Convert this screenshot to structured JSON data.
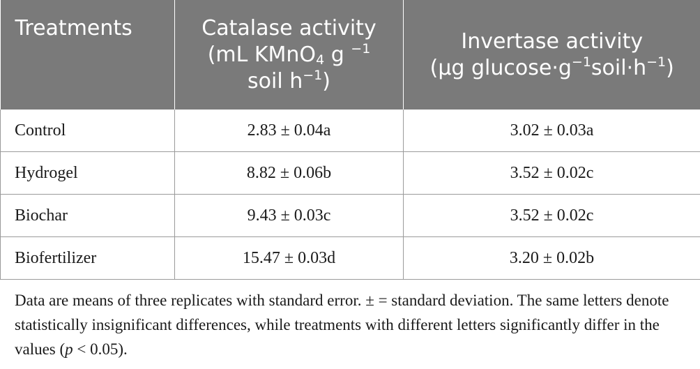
{
  "table": {
    "headers": {
      "treatments": "Treatments",
      "catalase": {
        "line1": "Catalase activity",
        "line2_pre": "(mL KMnO",
        "line2_sub": "4",
        "line2_post": " g ",
        "line2_sup": "−1",
        "line3_pre": "soil h",
        "line3_sup": "−1",
        "line3_post": ")"
      },
      "invertase": {
        "line1": "Invertase activity",
        "line2_pre": "(μg glucose·g",
        "line2_sup1": "−1",
        "line2_mid": "soil·h",
        "line2_sup2": "−1",
        "line2_post": ")"
      }
    },
    "rows": [
      {
        "treatment": "Control",
        "catalase": "2.83 ± 0.04a",
        "invertase": "3.02 ± 0.03a"
      },
      {
        "treatment": "Hydrogel",
        "catalase": "8.82 ± 0.06b",
        "invertase": "3.52 ± 0.02c"
      },
      {
        "treatment": "Biochar",
        "catalase": "9.43 ± 0.03c",
        "invertase": "3.52 ± 0.02c"
      },
      {
        "treatment": "Biofertilizer",
        "catalase": "15.47 ± 0.03d",
        "invertase": "3.20 ± 0.02b"
      }
    ]
  },
  "footnote": {
    "text_pre": "Data are means of three replicates with standard error. ± = standard deviation. The same letters denote statistically insignificant differences, while treatments with different letters significantly differ in the values (",
    "p": "p",
    "text_post": " < 0.05)."
  }
}
